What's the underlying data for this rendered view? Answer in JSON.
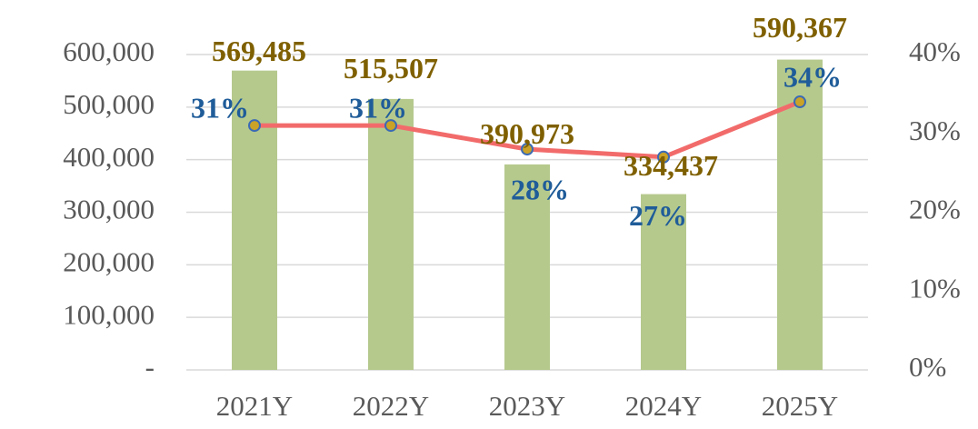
{
  "chart_data": {
    "type": "combo",
    "categories": [
      "2021Y",
      "2022Y",
      "2023Y",
      "2024Y",
      "2025Y"
    ],
    "series": [
      {
        "type": "bar",
        "color": "#b5c98d",
        "label_color": "#7f6000",
        "values": [
          569485,
          515507,
          390973,
          334437,
          590367
        ],
        "value_labels": [
          "569,485",
          "515,507",
          "390,973",
          "334,437",
          "590,367"
        ]
      },
      {
        "type": "line",
        "axis": "y2",
        "color": "#f26b6b",
        "marker_color": "#c9a227",
        "marker_edge": "#3b6bb5",
        "label_color": "#1f5c99",
        "values": [
          31,
          31,
          28,
          27,
          34
        ],
        "value_labels": [
          "31%",
          "31%",
          "28%",
          "27%",
          "34%"
        ]
      }
    ],
    "ylim": [
      0,
      600000
    ],
    "yticks": [
      {
        "value": 0,
        "label": "-"
      },
      {
        "value": 100000,
        "label": "100,000"
      },
      {
        "value": 200000,
        "label": "200,000"
      },
      {
        "value": 300000,
        "label": "300,000"
      },
      {
        "value": 400000,
        "label": "400,000"
      },
      {
        "value": 500000,
        "label": "500,000"
      },
      {
        "value": 600000,
        "label": "600,000"
      }
    ],
    "y2lim": [
      0,
      40
    ],
    "y2ticks": [
      {
        "value": 0,
        "label": "0%"
      },
      {
        "value": 10,
        "label": "10%"
      },
      {
        "value": 20,
        "label": "20%"
      },
      {
        "value": 30,
        "label": "30%"
      },
      {
        "value": 40,
        "label": "40%"
      }
    ],
    "grid": true
  }
}
